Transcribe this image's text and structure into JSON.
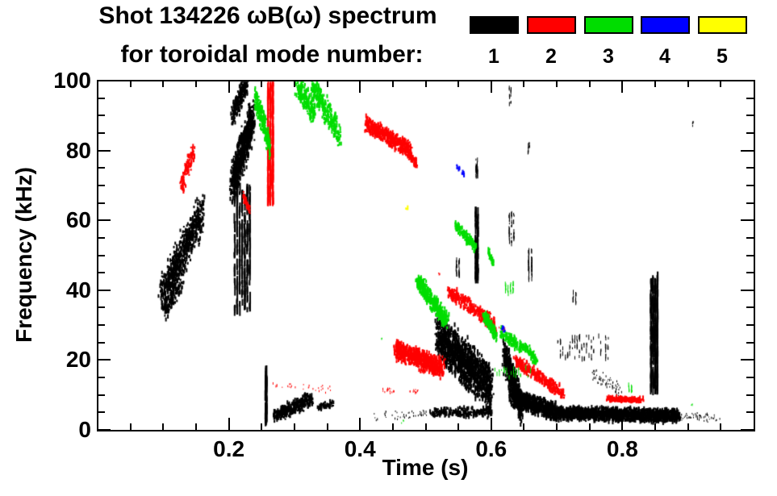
{
  "title": {
    "line1": "Shot 134226 ωB(ω) spectrum",
    "line2": "for toroidal mode number:"
  },
  "legend": {
    "entries": [
      {
        "label": "1",
        "color": "#000000"
      },
      {
        "label": "2",
        "color": "#ff0000"
      },
      {
        "label": "3",
        "color": "#00dd00"
      },
      {
        "label": "4",
        "color": "#0000ff"
      },
      {
        "label": "5",
        "color": "#ffff00"
      }
    ]
  },
  "chart_data": {
    "type": "scatter",
    "title": "Shot 134226 ωB(ω) spectrum for toroidal mode number",
    "xlabel": "Time (s)",
    "ylabel": "Frequency (kHz)",
    "xlim": [
      0,
      1.0
    ],
    "ylim": [
      0,
      100
    ],
    "xticks": [
      {
        "v": 0.2,
        "label": "0.2"
      },
      {
        "v": 0.4,
        "label": "0.4"
      },
      {
        "v": 0.6,
        "label": "0.6"
      },
      {
        "v": 0.8,
        "label": "0.8"
      }
    ],
    "yticks": [
      {
        "v": 0,
        "label": "0"
      },
      {
        "v": 20,
        "label": "20"
      },
      {
        "v": 40,
        "label": "40"
      },
      {
        "v": 60,
        "label": "60"
      },
      {
        "v": 80,
        "label": "80"
      },
      {
        "v": 100,
        "label": "100"
      }
    ],
    "xminor_step": 0.05,
    "yminor_step": 5,
    "grid": false,
    "legend_position": "top-right",
    "mode_colors": {
      "1": "#000000",
      "2": "#ff0000",
      "3": "#00dd00",
      "4": "#0000ff",
      "5": "#ffff00"
    },
    "clusters": [
      {
        "mode": 1,
        "t": [
          0.098,
          0.158
        ],
        "f": [
          38,
          62
        ],
        "spread_f": 6.5,
        "spread_t": 0.006,
        "n": 650,
        "size": 2,
        "vertical": false
      },
      {
        "mode": 1,
        "t": [
          0.102,
          0.128
        ],
        "f": [
          34,
          42
        ],
        "spread_f": 3.5,
        "spread_t": 0.004,
        "n": 100,
        "size": 2,
        "vertical": false
      },
      {
        "mode": 1,
        "t": [
          0.205,
          0.236
        ],
        "f": [
          70,
          89
        ],
        "spread_f": 6.5,
        "spread_t": 0.004,
        "n": 750,
        "size": 2,
        "vertical": false
      },
      {
        "mode": 1,
        "t": [
          0.206,
          0.228
        ],
        "f": [
          90,
          100
        ],
        "spread_f": 4,
        "spread_t": 0.003,
        "n": 220,
        "size": 2,
        "vertical": false
      },
      {
        "mode": 1,
        "t": [
          0.207,
          0.234
        ],
        "f": [
          34,
          70
        ],
        "spread_f": 0,
        "spread_t": 0,
        "n": 260,
        "size": 2,
        "vertical": true
      },
      {
        "mode": 1,
        "t": [
          0.2555,
          0.258
        ],
        "f": [
          2,
          17
        ],
        "spread_f": 0,
        "spread_t": 0,
        "n": 80,
        "size": 2,
        "vertical": true
      },
      {
        "mode": 1,
        "t": [
          0.27,
          0.327
        ],
        "f": [
          4,
          9
        ],
        "spread_f": 2.4,
        "spread_t": 0.003,
        "n": 320,
        "size": 2,
        "vertical": false
      },
      {
        "mode": 1,
        "t": [
          0.337,
          0.358
        ],
        "f": [
          6.5,
          7.5
        ],
        "spread_f": 1,
        "spread_t": 0.002,
        "n": 45,
        "size": 2,
        "vertical": false
      },
      {
        "mode": 1,
        "t": [
          0.42,
          0.5
        ],
        "f": [
          4,
          4.5
        ],
        "spread_f": 1.4,
        "spread_t": 0.004,
        "n": 45,
        "size": 1,
        "vertical": false
      },
      {
        "mode": 1,
        "t": [
          0.518,
          0.6
        ],
        "f": [
          27,
          12
        ],
        "spread_f": 7.5,
        "spread_t": 0.004,
        "n": 1500,
        "size": 2,
        "vertical": false
      },
      {
        "mode": 1,
        "t": [
          0.508,
          0.6
        ],
        "f": [
          5,
          5
        ],
        "spread_f": 1.6,
        "spread_t": 0.003,
        "n": 220,
        "size": 2,
        "vertical": false
      },
      {
        "mode": 1,
        "t": [
          0.545,
          0.553
        ],
        "f": [
          44,
          49
        ],
        "spread_f": 0,
        "spread_t": 0,
        "n": 30,
        "size": 1,
        "vertical": true
      },
      {
        "mode": 1,
        "t": [
          0.575,
          0.581
        ],
        "f": [
          43,
          63
        ],
        "spread_f": 0,
        "spread_t": 0,
        "n": 90,
        "size": 2,
        "vertical": true
      },
      {
        "mode": 1,
        "t": [
          0.576,
          0.58
        ],
        "f": [
          72,
          77.5
        ],
        "spread_f": 0,
        "spread_t": 0,
        "n": 28,
        "size": 1,
        "vertical": true
      },
      {
        "mode": 1,
        "t": [
          0.62,
          0.646
        ],
        "f": [
          22,
          6
        ],
        "spread_f": 5.5,
        "spread_t": 0.003,
        "n": 520,
        "size": 2,
        "vertical": false
      },
      {
        "mode": 1,
        "t": [
          0.63,
          0.7
        ],
        "f": [
          9.5,
          5
        ],
        "spread_f": 3,
        "spread_t": 0.004,
        "n": 750,
        "size": 2,
        "vertical": false
      },
      {
        "mode": 1,
        "t": [
          0.7,
          0.886
        ],
        "f": [
          4.8,
          4
        ],
        "spread_f": 2.2,
        "spread_t": 0.004,
        "n": 1700,
        "size": 2,
        "vertical": false
      },
      {
        "mode": 1,
        "t": [
          0.888,
          0.947
        ],
        "f": [
          4,
          3.5
        ],
        "spread_f": 1.5,
        "spread_t": 0.004,
        "n": 55,
        "size": 1,
        "vertical": false
      },
      {
        "mode": 1,
        "t": [
          0.626,
          0.636
        ],
        "f": [
          53,
          62
        ],
        "spread_f": 0,
        "spread_t": 0,
        "n": 45,
        "size": 1,
        "vertical": true
      },
      {
        "mode": 1,
        "t": [
          0.655,
          0.664
        ],
        "f": [
          43,
          51.5
        ],
        "spread_f": 0,
        "spread_t": 0,
        "n": 50,
        "size": 1,
        "vertical": true
      },
      {
        "mode": 1,
        "t": [
          0.6555,
          0.659
        ],
        "f": [
          79,
          82
        ],
        "spread_f": 0,
        "spread_t": 0,
        "n": 10,
        "size": 1,
        "vertical": true
      },
      {
        "mode": 1,
        "t": [
          0.627,
          0.631
        ],
        "f": [
          93,
          98
        ],
        "spread_f": 0,
        "spread_t": 0,
        "n": 14,
        "size": 1,
        "vertical": true
      },
      {
        "mode": 1,
        "t": [
          0.7,
          0.78
        ],
        "f": [
          20,
          27
        ],
        "spread_f": 0,
        "spread_t": 0,
        "n": 85,
        "size": 1,
        "vertical": true
      },
      {
        "mode": 1,
        "t": [
          0.723,
          0.731
        ],
        "f": [
          36,
          39.5
        ],
        "spread_f": 0,
        "spread_t": 0,
        "n": 12,
        "size": 1,
        "vertical": true
      },
      {
        "mode": 1,
        "t": [
          0.755,
          0.8
        ],
        "f": [
          16,
          11
        ],
        "spread_f": 2.5,
        "spread_t": 0.003,
        "n": 65,
        "size": 1,
        "vertical": false
      },
      {
        "mode": 1,
        "t": [
          0.842,
          0.855
        ],
        "f": [
          11,
          44
        ],
        "spread_f": 0,
        "spread_t": 0,
        "n": 330,
        "size": 2,
        "vertical": true
      },
      {
        "mode": 1,
        "t": [
          0.905,
          0.909
        ],
        "f": [
          87,
          88.5
        ],
        "spread_f": 0.5,
        "spread_t": 0.001,
        "n": 5,
        "size": 1,
        "vertical": false
      },
      {
        "mode": 2,
        "t": [
          0.128,
          0.147
        ],
        "f": [
          70,
          80
        ],
        "spread_f": 3,
        "spread_t": 0.0025,
        "n": 100,
        "size": 2,
        "vertical": false
      },
      {
        "mode": 2,
        "t": [
          0.222,
          0.232
        ],
        "f": [
          67,
          63
        ],
        "spread_f": 1.5,
        "spread_t": 0.001,
        "n": 40,
        "size": 2,
        "vertical": false
      },
      {
        "mode": 2,
        "t": [
          0.258,
          0.269
        ],
        "f": [
          65,
          100
        ],
        "spread_f": 0,
        "spread_t": 0,
        "n": 300,
        "size": 2,
        "vertical": true
      },
      {
        "mode": 2,
        "t": [
          0.27,
          0.36
        ],
        "f": [
          12.5,
          11.5
        ],
        "spread_f": 1.2,
        "spread_t": 0.005,
        "n": 30,
        "size": 1,
        "vertical": false
      },
      {
        "mode": 2,
        "t": [
          0.41,
          0.477
        ],
        "f": [
          87.5,
          80
        ],
        "spread_f": 2.6,
        "spread_t": 0.003,
        "n": 480,
        "size": 2,
        "vertical": false
      },
      {
        "mode": 2,
        "t": [
          0.474,
          0.487
        ],
        "f": [
          79,
          76
        ],
        "spread_f": 1.5,
        "spread_t": 0.001,
        "n": 55,
        "size": 2,
        "vertical": false
      },
      {
        "mode": 2,
        "t": [
          0.43,
          0.452
        ],
        "f": [
          11.5,
          11
        ],
        "spread_f": 0.8,
        "spread_t": 0.002,
        "n": 18,
        "size": 1,
        "vertical": false
      },
      {
        "mode": 2,
        "t": [
          0.476,
          0.488
        ],
        "f": [
          11,
          11
        ],
        "spread_f": 0.8,
        "spread_t": 0.001,
        "n": 14,
        "size": 1,
        "vertical": false
      },
      {
        "mode": 2,
        "t": [
          0.455,
          0.527
        ],
        "f": [
          23,
          17.5
        ],
        "spread_f": 3.4,
        "spread_t": 0.004,
        "n": 750,
        "size": 2,
        "vertical": false
      },
      {
        "mode": 2,
        "t": [
          0.535,
          0.606
        ],
        "f": [
          40,
          30
        ],
        "spread_f": 2.4,
        "spread_t": 0.003,
        "n": 280,
        "size": 2,
        "vertical": false
      },
      {
        "mode": 2,
        "t": [
          0.637,
          0.712
        ],
        "f": [
          20,
          10
        ],
        "spread_f": 2,
        "spread_t": 0.003,
        "n": 300,
        "size": 2,
        "vertical": false
      },
      {
        "mode": 2,
        "t": [
          0.777,
          0.833
        ],
        "f": [
          9,
          8.5
        ],
        "spread_f": 0.8,
        "spread_t": 0.003,
        "n": 170,
        "size": 2,
        "vertical": false
      },
      {
        "mode": 2,
        "t": [
          0.61,
          0.623
        ],
        "f": [
          29,
          28.5
        ],
        "spread_f": 0.8,
        "spread_t": 0.001,
        "n": 10,
        "size": 1,
        "vertical": false
      },
      {
        "mode": 2,
        "t": [
          0.519,
          0.523
        ],
        "f": [
          44.5,
          45
        ],
        "spread_f": 0.5,
        "spread_t": 0.001,
        "n": 4,
        "size": 1,
        "vertical": false
      },
      {
        "mode": 3,
        "t": [
          0.24,
          0.263
        ],
        "f": [
          96,
          81
        ],
        "spread_f": 4,
        "spread_t": 0.002,
        "n": 210,
        "size": 2,
        "vertical": false
      },
      {
        "mode": 3,
        "t": [
          0.303,
          0.332
        ],
        "f": [
          99,
          90
        ],
        "spread_f": 4,
        "spread_t": 0.003,
        "n": 190,
        "size": 2,
        "vertical": false
      },
      {
        "mode": 3,
        "t": [
          0.327,
          0.369
        ],
        "f": [
          99,
          84
        ],
        "spread_f": 4.5,
        "spread_t": 0.003,
        "n": 270,
        "size": 2,
        "vertical": false
      },
      {
        "mode": 3,
        "t": [
          0.487,
          0.533
        ],
        "f": [
          43,
          31
        ],
        "spread_f": 2.8,
        "spread_t": 0.003,
        "n": 430,
        "size": 2,
        "vertical": false
      },
      {
        "mode": 3,
        "t": [
          0.545,
          0.578
        ],
        "f": [
          58.5,
          52
        ],
        "spread_f": 1.8,
        "spread_t": 0.002,
        "n": 150,
        "size": 2,
        "vertical": false
      },
      {
        "mode": 3,
        "t": [
          0.596,
          0.603
        ],
        "f": [
          51,
          47.5
        ],
        "spread_f": 1.2,
        "spread_t": 0.001,
        "n": 35,
        "size": 2,
        "vertical": false
      },
      {
        "mode": 3,
        "t": [
          0.589,
          0.607
        ],
        "f": [
          33,
          27
        ],
        "spread_f": 2,
        "spread_t": 0.002,
        "n": 120,
        "size": 2,
        "vertical": false
      },
      {
        "mode": 3,
        "t": [
          0.615,
          0.649
        ],
        "f": [
          28,
          23
        ],
        "spread_f": 2,
        "spread_t": 0.003,
        "n": 130,
        "size": 2,
        "vertical": false
      },
      {
        "mode": 3,
        "t": [
          0.65,
          0.669
        ],
        "f": [
          24,
          20
        ],
        "spread_f": 1.8,
        "spread_t": 0.002,
        "n": 70,
        "size": 2,
        "vertical": false
      },
      {
        "mode": 3,
        "t": [
          0.62,
          0.635
        ],
        "f": [
          39,
          42
        ],
        "spread_f": 0,
        "spread_t": 0,
        "n": 26,
        "size": 1,
        "vertical": true
      },
      {
        "mode": 3,
        "t": [
          0.6,
          0.665
        ],
        "f": [
          15,
          18
        ],
        "spread_f": 0,
        "spread_t": 0,
        "n": 28,
        "size": 1,
        "vertical": true
      },
      {
        "mode": 3,
        "t": [
          0.808,
          0.816
        ],
        "f": [
          11,
          13
        ],
        "spread_f": 0,
        "spread_t": 0,
        "n": 12,
        "size": 1,
        "vertical": true
      },
      {
        "mode": 3,
        "t": [
          0.902,
          0.907
        ],
        "f": [
          6.5,
          7.5
        ],
        "spread_f": 0.5,
        "spread_t": 0.001,
        "n": 4,
        "size": 1,
        "vertical": false
      },
      {
        "mode": 3,
        "t": [
          0.432,
          0.436
        ],
        "f": [
          26,
          26.5
        ],
        "spread_f": 0.5,
        "spread_t": 0.001,
        "n": 3,
        "size": 1,
        "vertical": false
      },
      {
        "mode": 3,
        "t": [
          0.464,
          0.468
        ],
        "f": [
          2,
          2.5
        ],
        "spread_f": 0.5,
        "spread_t": 0.001,
        "n": 3,
        "size": 1,
        "vertical": false
      },
      {
        "mode": 4,
        "t": [
          0.547,
          0.553
        ],
        "f": [
          75.5,
          74.5
        ],
        "spread_f": 0.8,
        "spread_t": 0.001,
        "n": 7,
        "size": 2,
        "vertical": false
      },
      {
        "mode": 4,
        "t": [
          0.556,
          0.56
        ],
        "f": [
          73.5,
          73
        ],
        "spread_f": 0.6,
        "spread_t": 0.001,
        "n": 5,
        "size": 2,
        "vertical": false
      },
      {
        "mode": 4,
        "t": [
          0.616,
          0.621
        ],
        "f": [
          29.5,
          28.5
        ],
        "spread_f": 0.8,
        "spread_t": 0.001,
        "n": 5,
        "size": 2,
        "vertical": false
      },
      {
        "mode": 5,
        "t": [
          0.47,
          0.474
        ],
        "f": [
          63.5,
          63
        ],
        "spread_f": 0.5,
        "spread_t": 0.001,
        "n": 3,
        "size": 2,
        "vertical": false
      }
    ]
  }
}
